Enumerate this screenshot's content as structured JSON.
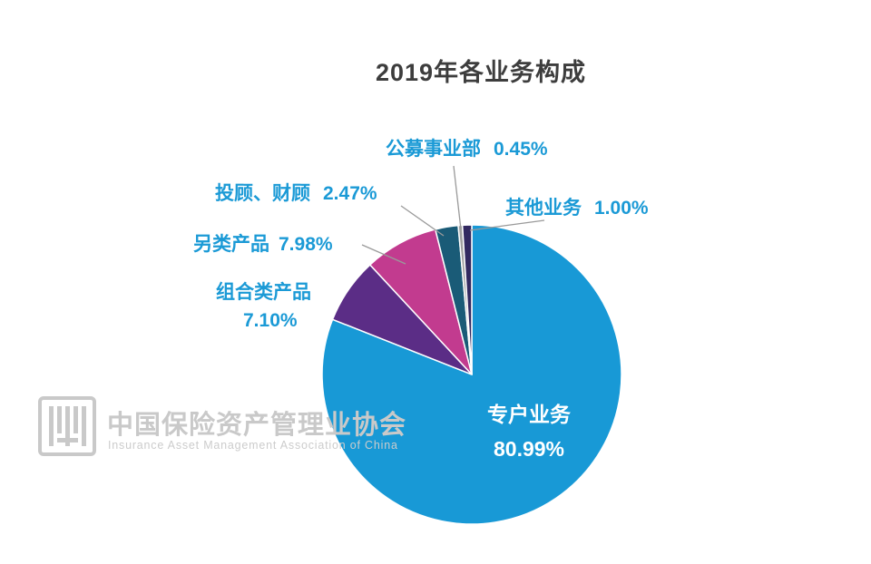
{
  "title": "2019年各业务构成",
  "watermark": {
    "cn": "中国保险资产管理业协会",
    "en": "Insurance Asset Management Association of China"
  },
  "chart_data": {
    "type": "pie",
    "title": "2019年各业务构成",
    "direction": "clockwise",
    "start_angle_deg": 0,
    "legend_position": "callout-labels-with-leader-lines",
    "series": [
      {
        "label": "专户业务",
        "value": 80.99,
        "display": "80.99%",
        "color": "#1899d6",
        "label_placement": "inside"
      },
      {
        "label": "组合类产品",
        "value": 7.1,
        "display": "7.10%",
        "color": "#5b2d86",
        "label_placement": "outside"
      },
      {
        "label": "另类产品",
        "value": 7.98,
        "display": "7.98%",
        "color": "#c23b8f",
        "label_placement": "outside"
      },
      {
        "label": "投顾、财顾",
        "value": 2.47,
        "display": "2.47%",
        "color": "#1a5b77",
        "label_placement": "outside"
      },
      {
        "label": "公募事业部",
        "value": 0.45,
        "display": "0.45%",
        "color": "#a0a0a0",
        "label_placement": "outside"
      },
      {
        "label": "其他业务",
        "value": 1.0,
        "display": "1.00%",
        "color": "#322960",
        "label_placement": "outside"
      }
    ],
    "label_color": "#1b9ad6",
    "inside_label_color": "#ffffff"
  }
}
